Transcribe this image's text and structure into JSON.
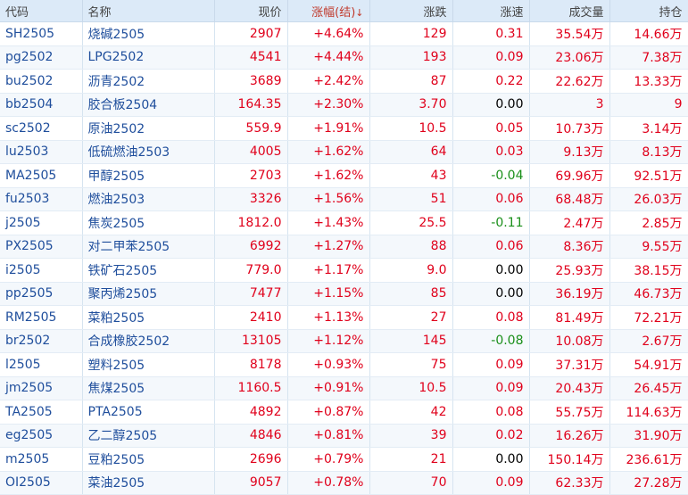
{
  "headers": {
    "code": "代码",
    "name": "名称",
    "price": "现价",
    "pct": "涨幅(结)",
    "pct_arrow": "↓",
    "chg": "涨跌",
    "speed": "涨速",
    "vol": "成交量",
    "oi": "持仓"
  },
  "colors": {
    "up": "#e0001b",
    "down": "#1a8f1a",
    "link": "#1f4e9c",
    "header_bg": "#dceaf8"
  },
  "rows": [
    {
      "code": "SH2505",
      "name": "烧碱2505",
      "price": "2907",
      "pct": "+4.64%",
      "chg": "129",
      "speed": "0.31",
      "vol": "35.54万",
      "oi": "14.66万"
    },
    {
      "code": "pg2502",
      "name": "LPG2502",
      "price": "4541",
      "pct": "+4.44%",
      "chg": "193",
      "speed": "0.09",
      "vol": "23.06万",
      "oi": "7.38万"
    },
    {
      "code": "bu2502",
      "name": "沥青2502",
      "price": "3689",
      "pct": "+2.42%",
      "chg": "87",
      "speed": "0.22",
      "vol": "22.62万",
      "oi": "13.33万"
    },
    {
      "code": "bb2504",
      "name": "胶合板2504",
      "price": "164.35",
      "pct": "+2.30%",
      "chg": "3.70",
      "speed": "0.00",
      "vol": "3",
      "oi": "9"
    },
    {
      "code": "sc2502",
      "name": "原油2502",
      "price": "559.9",
      "pct": "+1.91%",
      "chg": "10.5",
      "speed": "0.05",
      "vol": "10.73万",
      "oi": "3.14万"
    },
    {
      "code": "lu2503",
      "name": "低硫燃油2503",
      "price": "4005",
      "pct": "+1.62%",
      "chg": "64",
      "speed": "0.03",
      "vol": "9.13万",
      "oi": "8.13万"
    },
    {
      "code": "MA2505",
      "name": "甲醇2505",
      "price": "2703",
      "pct": "+1.62%",
      "chg": "43",
      "speed": "-0.04",
      "vol": "69.96万",
      "oi": "92.51万"
    },
    {
      "code": "fu2503",
      "name": "燃油2503",
      "price": "3326",
      "pct": "+1.56%",
      "chg": "51",
      "speed": "0.06",
      "vol": "68.48万",
      "oi": "26.03万"
    },
    {
      "code": "j2505",
      "name": "焦炭2505",
      "price": "1812.0",
      "pct": "+1.43%",
      "chg": "25.5",
      "speed": "-0.11",
      "vol": "2.47万",
      "oi": "2.85万"
    },
    {
      "code": "PX2505",
      "name": "对二甲苯2505",
      "price": "6992",
      "pct": "+1.27%",
      "chg": "88",
      "speed": "0.06",
      "vol": "8.36万",
      "oi": "9.55万"
    },
    {
      "code": "i2505",
      "name": "铁矿石2505",
      "price": "779.0",
      "pct": "+1.17%",
      "chg": "9.0",
      "speed": "0.00",
      "vol": "25.93万",
      "oi": "38.15万"
    },
    {
      "code": "pp2505",
      "name": "聚丙烯2505",
      "price": "7477",
      "pct": "+1.15%",
      "chg": "85",
      "speed": "0.00",
      "vol": "36.19万",
      "oi": "46.73万"
    },
    {
      "code": "RM2505",
      "name": "菜粕2505",
      "price": "2410",
      "pct": "+1.13%",
      "chg": "27",
      "speed": "0.08",
      "vol": "81.49万",
      "oi": "72.21万"
    },
    {
      "code": "br2502",
      "name": "合成橡胶2502",
      "price": "13105",
      "pct": "+1.12%",
      "chg": "145",
      "speed": "-0.08",
      "vol": "10.08万",
      "oi": "2.67万"
    },
    {
      "code": "l2505",
      "name": "塑料2505",
      "price": "8178",
      "pct": "+0.93%",
      "chg": "75",
      "speed": "0.09",
      "vol": "37.31万",
      "oi": "54.91万"
    },
    {
      "code": "jm2505",
      "name": "焦煤2505",
      "price": "1160.5",
      "pct": "+0.91%",
      "chg": "10.5",
      "speed": "0.09",
      "vol": "20.43万",
      "oi": "26.45万"
    },
    {
      "code": "TA2505",
      "name": "PTA2505",
      "price": "4892",
      "pct": "+0.87%",
      "chg": "42",
      "speed": "0.08",
      "vol": "55.75万",
      "oi": "114.63万"
    },
    {
      "code": "eg2505",
      "name": "乙二醇2505",
      "price": "4846",
      "pct": "+0.81%",
      "chg": "39",
      "speed": "0.02",
      "vol": "16.26万",
      "oi": "31.90万"
    },
    {
      "code": "m2505",
      "name": "豆粕2505",
      "price": "2696",
      "pct": "+0.79%",
      "chg": "21",
      "speed": "0.00",
      "vol": "150.14万",
      "oi": "236.61万"
    },
    {
      "code": "OI2505",
      "name": "菜油2505",
      "price": "9057",
      "pct": "+0.78%",
      "chg": "70",
      "speed": "0.09",
      "vol": "62.33万",
      "oi": "27.28万"
    }
  ]
}
